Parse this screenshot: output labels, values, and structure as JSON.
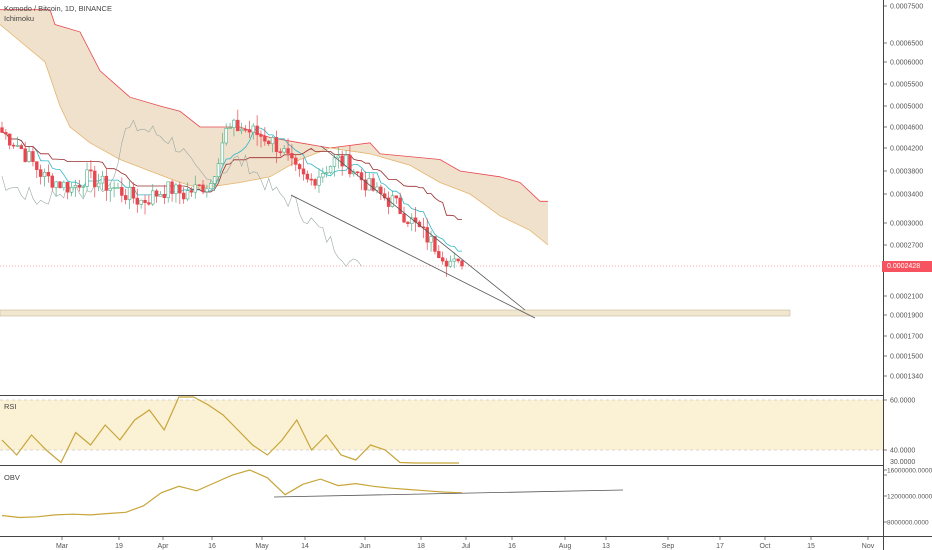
{
  "header": {
    "symbol_line": "Komodo / Bitcoin, 1D, BINANCE",
    "indicator": "Ichimoku"
  },
  "panes": {
    "rsi_label": "RSI",
    "obv_label": "OBV"
  },
  "colors": {
    "up": "#4caf88",
    "down": "#e8474f",
    "cloud": "#eddcc4",
    "cloud_line_red": "#e8474f",
    "cloud_line_orange": "#e4b56d",
    "tenkan": "#2db7c7",
    "kijun": "#9b2c2c",
    "rsi_line": "#c8a53a",
    "rsi_band": "#fbf1d5",
    "obv_line": "#c8a53a",
    "trendline": "#555555",
    "support_band": "#f1e6d0",
    "price_tag": "#f7525f"
  },
  "chart_data": [
    {
      "type": "candlestick",
      "title": "Komodo / Bitcoin, 1D, BINANCE",
      "ylim": [
        0.000118,
        0.00076
      ],
      "x_ticks": [
        "Mar",
        "19",
        "Apr",
        "16",
        "May",
        "14",
        "Jun",
        "18",
        "Jul",
        "16",
        "Aug",
        "13",
        "Sep",
        "17",
        "Oct",
        "15",
        "Nov"
      ],
      "y_ticks": [
        "0.0007500",
        "0.0006500",
        "0.0006000",
        "0.0005500",
        "0.0005000",
        "0.0004600",
        "0.0004200",
        "0.0003800",
        "0.0003400",
        "0.0003000",
        "0.0002700",
        "0.0002100",
        "0.0001900",
        "0.0001700",
        "0.0001500",
        "0.0001340"
      ],
      "last_price": "0.0002428",
      "last_value": 0.0002428,
      "support_zone": [
        0.000188,
        0.000192
      ],
      "series": [
        {
          "name": "Ichimoku",
          "values": [
            0.00045,
            0.00043,
            0.0004,
            0.00037,
            0.00036,
            0.00035,
            0.00037,
            0.00036,
            0.00035,
            0.00034,
            0.00033,
            0.00034,
            0.00035,
            0.00034,
            0.00035,
            0.00036,
            0.00045,
            0.00046,
            0.00045,
            0.00044,
            0.00042,
            0.00038,
            0.00036,
            0.00038,
            0.0004,
            0.00039,
            0.00036,
            0.00034,
            0.00033,
            0.00031,
            0.00029,
            0.00027,
            0.00025,
            0.00024
          ]
        }
      ]
    },
    {
      "type": "line",
      "title": "RSI",
      "ylim": [
        25,
        70
      ],
      "y_ticks": [
        "60.0000",
        "40.0000",
        "30.0000"
      ],
      "series": [
        {
          "name": "RSI",
          "values": [
            44,
            38,
            46,
            40,
            35,
            47,
            42,
            50,
            44,
            52,
            56,
            48,
            64,
            68,
            58,
            54,
            48,
            42,
            38,
            44,
            52,
            40,
            46,
            38,
            36,
            42,
            40,
            35,
            33,
            31,
            30,
            34
          ]
        }
      ]
    },
    {
      "type": "line",
      "title": "OBV",
      "ylim": [
        6000000,
        17000000
      ],
      "y_ticks": [
        "16000000.0000",
        "12000000.0000",
        "8000000.0000"
      ],
      "series": [
        {
          "name": "OBV",
          "values": [
            9000000,
            8700000,
            8800000,
            9100000,
            9200000,
            9100000,
            9300000,
            9500000,
            10500000,
            12500000,
            13500000,
            12800000,
            14000000,
            15200000,
            16000000,
            14800000,
            12200000,
            13800000,
            14600000,
            13600000,
            13900000,
            13500000,
            13200000,
            13000000,
            12800000,
            12600000,
            12500000
          ]
        }
      ]
    }
  ]
}
